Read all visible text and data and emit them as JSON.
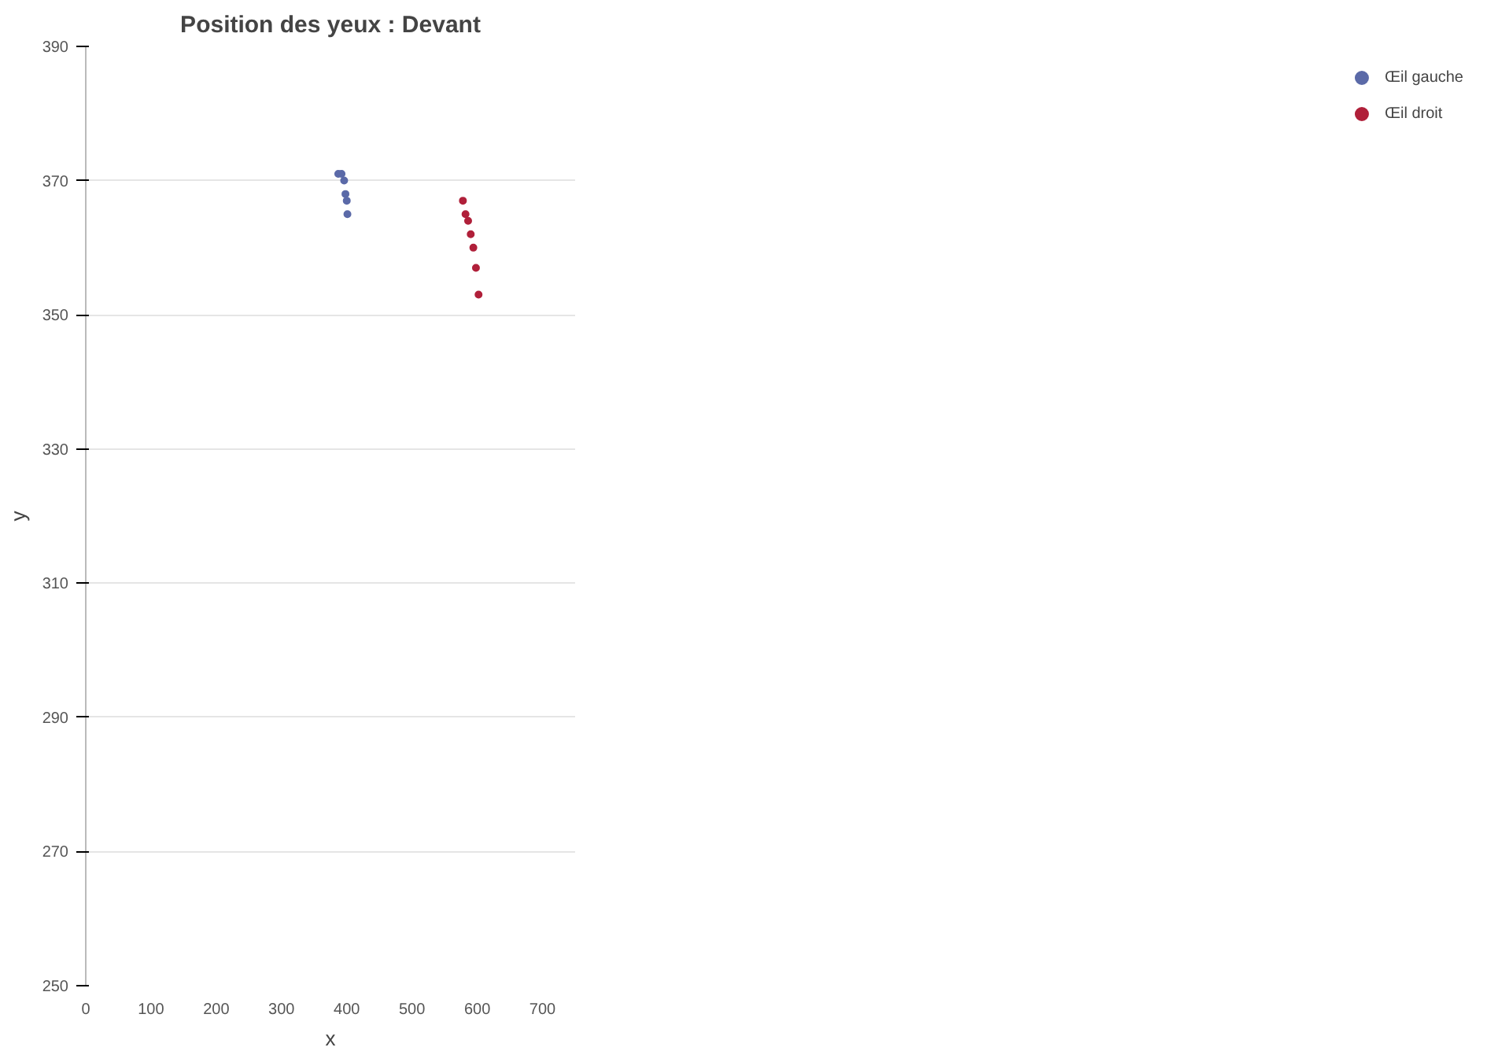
{
  "chart_data": {
    "type": "scatter",
    "title": "Position des yeux : Devant",
    "xlabel": "x",
    "ylabel": "y",
    "xlim": [
      0,
      750
    ],
    "ylim": [
      250,
      390
    ],
    "xticks": [
      0,
      100,
      200,
      300,
      400,
      500,
      600,
      700
    ],
    "yticks": [
      250,
      270,
      290,
      310,
      330,
      350,
      370,
      390
    ],
    "grid": "y",
    "legend": "right",
    "marker": "circle",
    "series": [
      {
        "name": "Œil gauche",
        "color": "#5b6aa8",
        "x": [
          387,
          392,
          396,
          398,
          400,
          401
        ],
        "values": [
          371,
          371,
          370,
          368,
          367,
          365
        ]
      },
      {
        "name": "Œil droit",
        "color": "#b0203a",
        "x": [
          578,
          582,
          586,
          590,
          594,
          598,
          602
        ],
        "values": [
          367,
          365,
          364,
          362,
          360,
          357,
          353
        ]
      }
    ]
  }
}
